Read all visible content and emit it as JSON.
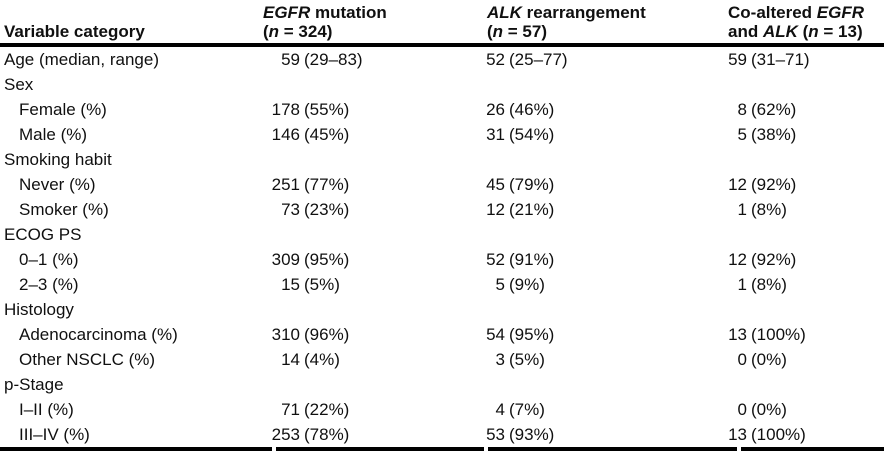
{
  "table": {
    "header": {
      "row_label": "Variable category",
      "columns": [
        {
          "line1": [
            {
              "text": "EGFR",
              "italic": true
            },
            {
              "text": " mutation",
              "italic": false
            }
          ],
          "line2": [
            {
              "text": "(",
              "italic": false
            },
            {
              "text": "n",
              "italic": true
            },
            {
              "text": " = 324)",
              "italic": false
            }
          ]
        },
        {
          "line1": [
            {
              "text": "ALK",
              "italic": true
            },
            {
              "text": " rearrangement",
              "italic": false
            }
          ],
          "line2": [
            {
              "text": "(",
              "italic": false
            },
            {
              "text": "n",
              "italic": true
            },
            {
              "text": " = 57)",
              "italic": false
            }
          ]
        },
        {
          "line1": [
            {
              "text": "Co-altered ",
              "italic": false
            },
            {
              "text": "EGFR",
              "italic": true
            }
          ],
          "line2": [
            {
              "text": "and ",
              "italic": false
            },
            {
              "text": "ALK",
              "italic": true
            },
            {
              "text": " (",
              "italic": false
            },
            {
              "text": "n",
              "italic": true
            },
            {
              "text": " = 13)",
              "italic": false
            }
          ]
        }
      ]
    },
    "rows": [
      {
        "label": "Age (median, range)",
        "indent": false,
        "values": [
          [
            "59",
            "(29–83)"
          ],
          [
            "52",
            "(25–77)"
          ],
          [
            "59",
            "(31–71)"
          ]
        ]
      },
      {
        "label": "Sex",
        "indent": false,
        "values": null
      },
      {
        "label": "Female (%)",
        "indent": true,
        "values": [
          [
            "178",
            "(55%)"
          ],
          [
            "26",
            "(46%)"
          ],
          [
            "8",
            "(62%)"
          ]
        ]
      },
      {
        "label": "Male (%)",
        "indent": true,
        "values": [
          [
            "146",
            "(45%)"
          ],
          [
            "31",
            "(54%)"
          ],
          [
            "5",
            "(38%)"
          ]
        ]
      },
      {
        "label": "Smoking habit",
        "indent": false,
        "values": null
      },
      {
        "label": "Never (%)",
        "indent": true,
        "values": [
          [
            "251",
            "(77%)"
          ],
          [
            "45",
            "(79%)"
          ],
          [
            "12",
            "(92%)"
          ]
        ]
      },
      {
        "label": "Smoker (%)",
        "indent": true,
        "values": [
          [
            "73",
            "(23%)"
          ],
          [
            "12",
            "(21%)"
          ],
          [
            "1",
            "(8%)"
          ]
        ]
      },
      {
        "label": "ECOG PS",
        "indent": false,
        "values": null
      },
      {
        "label": "0–1 (%)",
        "indent": true,
        "values": [
          [
            "309",
            "(95%)"
          ],
          [
            "52",
            "(91%)"
          ],
          [
            "12",
            "(92%)"
          ]
        ]
      },
      {
        "label": "2–3 (%)",
        "indent": true,
        "values": [
          [
            "15",
            "(5%)"
          ],
          [
            "5",
            "(9%)"
          ],
          [
            "1",
            "(8%)"
          ]
        ]
      },
      {
        "label": "Histology",
        "indent": false,
        "values": null
      },
      {
        "label": "Adenocarcinoma (%)",
        "indent": true,
        "values": [
          [
            "310",
            "(96%)"
          ],
          [
            "54",
            "(95%)"
          ],
          [
            "13",
            "(100%)"
          ]
        ]
      },
      {
        "label": "Other NSCLC (%)",
        "indent": true,
        "values": [
          [
            "14",
            "(4%)"
          ],
          [
            "3",
            "(5%)"
          ],
          [
            "0",
            "(0%)"
          ]
        ]
      },
      {
        "label": "p-Stage",
        "indent": false,
        "values": null
      },
      {
        "label": "I–II (%)",
        "indent": true,
        "values": [
          [
            "71",
            "(22%)"
          ],
          [
            "4",
            "(7%)"
          ],
          [
            "0",
            "(0%)"
          ]
        ]
      },
      {
        "label": "III–IV (%)",
        "indent": true,
        "values": [
          [
            "253",
            "(78%)"
          ],
          [
            "53",
            "(93%)"
          ],
          [
            "13",
            "(100%)"
          ]
        ]
      }
    ],
    "colors": {
      "text": "#101010",
      "rule": "#000000",
      "background": "#ffffff"
    }
  }
}
